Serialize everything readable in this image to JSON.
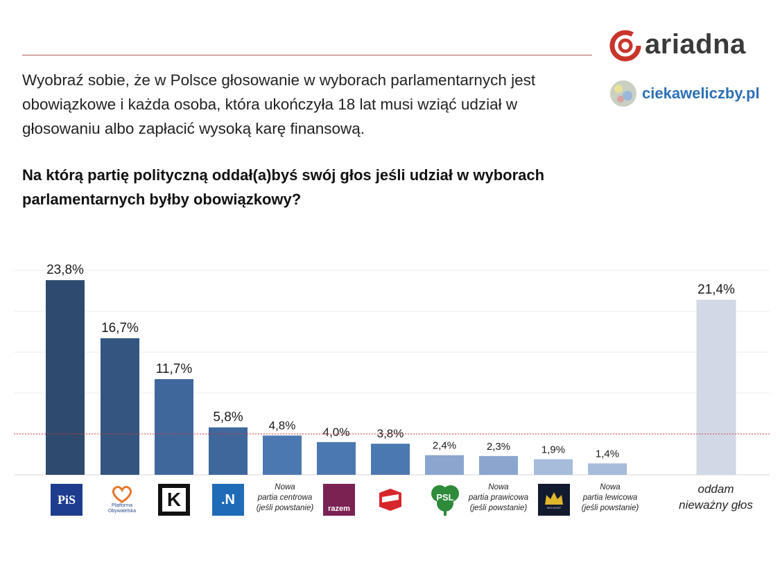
{
  "header": {
    "intro": "Wyobraź sobie, że w Polsce głosowanie w wyborach parlamentarnych jest obowiązkowe i każda osoba, która ukończyła 18 lat musi wziąć udział w głosowaniu albo zapłacić wysoką karę finansową.",
    "question": "Na którą partię polityczną oddał(a)byś swój głos jeśli udział w wyborach parlamentarnych byłby obowiązkowy?",
    "brand": "ariadna",
    "site": "ciekaweliczby.pl"
  },
  "logos": {
    "pis": "PiS",
    "po_line1": "Platforma",
    "po_line2": "Obywatelska",
    "kukiz": "K",
    "n": ".N",
    "razem": "razem",
    "psl": "PSL",
    "wolnosc": "WOLNOŚĆ"
  },
  "colors": {
    "dark_navy": "#2e4a6e",
    "navy": "#33557f",
    "blue": "#3f679c",
    "mid_blue": "#4c78b1",
    "light_blue": "#8ba5cf",
    "pale_blue": "#a7bbdb",
    "invalid": "#d1d8e6",
    "reference_line": "#d23b3b"
  },
  "chart_data": {
    "type": "bar",
    "categories": [
      "PiS",
      "Platforma Obywatelska",
      "Kukiz'15",
      ".Nowoczesna",
      "Nowa partia centrowa (jeśli powstanie)",
      "Razem",
      "SLD",
      "PSL",
      "Nowa partia prawicowa (jeśli powstanie)",
      "Wolność",
      "Nowa partia lewicowa (jeśli powstanie)",
      "oddam nieważny głos"
    ],
    "values": [
      23.8,
      16.7,
      11.7,
      5.8,
      4.8,
      4.0,
      3.8,
      2.4,
      2.3,
      1.9,
      1.4,
      21.4
    ],
    "value_labels": [
      "23,8%",
      "16,7%",
      "11,7%",
      "5,8%",
      "4,8%",
      "4,0%",
      "3,8%",
      "2,4%",
      "2,3%",
      "1,9%",
      "1,4%",
      "21,4%"
    ],
    "text_labels": {
      "nowa_centrowa": [
        "Nowa",
        "partia centrowa",
        "(jeśli powstanie)"
      ],
      "nowa_prawicowa": [
        "Nowa",
        "partia prawicowa",
        "(jeśli powstanie)"
      ],
      "nowa_lewicowa": [
        "Nowa",
        "partia lewicowa",
        "(jeśli powstanie)"
      ],
      "niewazny": [
        "oddam",
        "nieważny głos"
      ]
    },
    "reference_line": 5,
    "ylim": [
      0,
      25
    ],
    "grid": true,
    "title": "",
    "xlabel": "",
    "ylabel": ""
  }
}
